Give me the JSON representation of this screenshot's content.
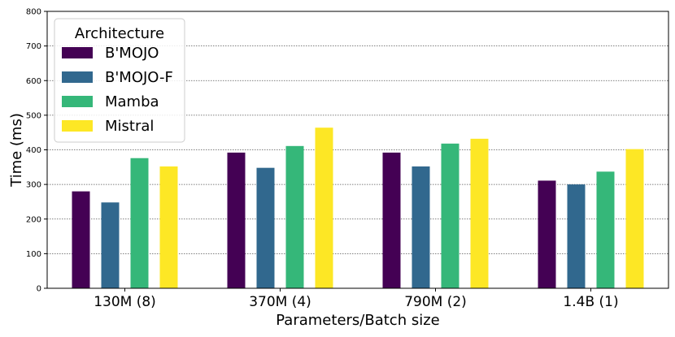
{
  "chart_data": {
    "type": "bar",
    "title": "",
    "xlabel": "Parameters/Batch size",
    "ylabel": "Time (ms)",
    "ylim": [
      0,
      800
    ],
    "yticks": [
      "0",
      "100",
      "200",
      "300",
      "400",
      "500",
      "600",
      "700",
      "800"
    ],
    "categories": [
      "130M (8)",
      "370M (4)",
      "790M (2)",
      "1.4B (1)"
    ],
    "grid": "horizontal dotted",
    "legend": {
      "title": "Architecture",
      "placement": "top-left"
    },
    "series": [
      {
        "name": "B'MOJO",
        "color": "#440154",
        "values": [
          280,
          392,
          392,
          311
        ]
      },
      {
        "name": "B'MOJO-F",
        "color": "#31688e",
        "values": [
          248,
          348,
          352,
          300
        ]
      },
      {
        "name": "Mamba",
        "color": "#35b779",
        "values": [
          376,
          411,
          418,
          337
        ]
      },
      {
        "name": "Mistral",
        "color": "#fde725",
        "values": [
          352,
          464,
          432,
          402
        ]
      }
    ]
  }
}
